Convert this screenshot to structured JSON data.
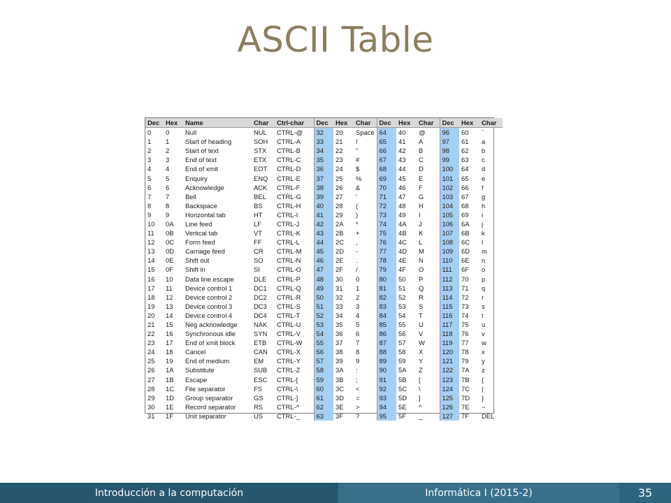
{
  "slide": {
    "title": "ASCII Table",
    "footer_left": "Introducción a la computación",
    "footer_mid": "Informática I (2015-2)",
    "page_number": "35"
  },
  "table": {
    "headers": [
      "Dec",
      "Hex",
      "Name",
      "Char",
      "Ctrl-char",
      "Dec",
      "Hex",
      "Char",
      "Dec",
      "Hex",
      "Char",
      "Dec",
      "Hex",
      "Char"
    ],
    "rows": [
      [
        "0",
        "0",
        "Null",
        "NUL",
        "CTRL-@",
        "32",
        "20",
        "Space",
        "64",
        "40",
        "@",
        "96",
        "60",
        "`"
      ],
      [
        "1",
        "1",
        "Start of heading",
        "SOH",
        "CTRL-A",
        "33",
        "21",
        "!",
        "65",
        "41",
        "A",
        "97",
        "61",
        "a"
      ],
      [
        "2",
        "2",
        "Start of text",
        "STX",
        "CTRL-B",
        "34",
        "22",
        "\"",
        "66",
        "42",
        "B",
        "98",
        "62",
        "b"
      ],
      [
        "3",
        "3",
        "End of text",
        "ETX",
        "CTRL-C",
        "35",
        "23",
        "#",
        "67",
        "43",
        "C",
        "99",
        "63",
        "c"
      ],
      [
        "4",
        "4",
        "End of xmit",
        "EOT",
        "CTRL-D",
        "36",
        "24",
        "$",
        "68",
        "44",
        "D",
        "100",
        "64",
        "d"
      ],
      [
        "5",
        "5",
        "Enquiry",
        "ENQ",
        "CTRL-E",
        "37",
        "25",
        "%",
        "69",
        "45",
        "E",
        "101",
        "65",
        "e"
      ],
      [
        "6",
        "6",
        "Acknowledge",
        "ACK",
        "CTRL-F",
        "38",
        "26",
        "&",
        "70",
        "46",
        "F",
        "102",
        "66",
        "f"
      ],
      [
        "7",
        "7",
        "Bell",
        "BEL",
        "CTRL-G",
        "39",
        "27",
        "'",
        "71",
        "47",
        "G",
        "103",
        "67",
        "g"
      ],
      [
        "8",
        "8",
        "Backspace",
        "BS",
        "CTRL-H",
        "40",
        "28",
        "(",
        "72",
        "48",
        "H",
        "104",
        "68",
        "h"
      ],
      [
        "9",
        "9",
        "Horizontal tab",
        "HT",
        "CTRL-I",
        "41",
        "29",
        ")",
        "73",
        "49",
        "I",
        "105",
        "69",
        "i"
      ],
      [
        "10",
        "0A",
        "Line feed",
        "LF",
        "CTRL-J",
        "42",
        "2A",
        "*",
        "74",
        "4A",
        "J",
        "106",
        "6A",
        "j"
      ],
      [
        "11",
        "0B",
        "Vertical tab",
        "VT",
        "CTRL-K",
        "43",
        "2B",
        "+",
        "75",
        "4B",
        "K",
        "107",
        "6B",
        "k"
      ],
      [
        "12",
        "0C",
        "Form feed",
        "FF",
        "CTRL-L",
        "44",
        "2C",
        ",",
        "76",
        "4C",
        "L",
        "108",
        "6C",
        "l"
      ],
      [
        "13",
        "0D",
        "Carriage feed",
        "CR",
        "CTRL-M",
        "45",
        "2D",
        "-",
        "77",
        "4D",
        "M",
        "109",
        "6D",
        "m"
      ],
      [
        "14",
        "0E",
        "Shift out",
        "SO",
        "CTRL-N",
        "46",
        "2E",
        ".",
        "78",
        "4E",
        "N",
        "110",
        "6E",
        "n"
      ],
      [
        "15",
        "0F",
        "Shift in",
        "SI",
        "CTRL-O",
        "47",
        "2F",
        "/",
        "79",
        "4F",
        "O",
        "111",
        "6F",
        "o"
      ],
      [
        "16",
        "10",
        "Data line escape",
        "DLE",
        "CTRL-P",
        "48",
        "30",
        "0",
        "80",
        "50",
        "P",
        "112",
        "70",
        "p"
      ],
      [
        "17",
        "11",
        "Device control 1",
        "DC1",
        "CTRL-Q",
        "49",
        "31",
        "1",
        "81",
        "51",
        "Q",
        "113",
        "71",
        "q"
      ],
      [
        "18",
        "12",
        "Device control 2",
        "DC2",
        "CTRL-R",
        "50",
        "32",
        "2",
        "82",
        "52",
        "R",
        "114",
        "72",
        "r"
      ],
      [
        "19",
        "13",
        "Device control 3",
        "DC3",
        "CTRL-S",
        "51",
        "33",
        "3",
        "83",
        "53",
        "S",
        "115",
        "73",
        "s"
      ],
      [
        "20",
        "14",
        "Device control 4",
        "DC4",
        "CTRL-T",
        "52",
        "34",
        "4",
        "84",
        "54",
        "T",
        "116",
        "74",
        "t"
      ],
      [
        "21",
        "15",
        "Neg acknowledge",
        "NAK",
        "CTRL-U",
        "53",
        "35",
        "5",
        "85",
        "55",
        "U",
        "117",
        "75",
        "u"
      ],
      [
        "22",
        "16",
        "Synchronous idle",
        "SYN",
        "CTRL-V",
        "54",
        "36",
        "6",
        "86",
        "56",
        "V",
        "118",
        "76",
        "v"
      ],
      [
        "23",
        "17",
        "End of xmit block",
        "ETB",
        "CTRL-W",
        "55",
        "37",
        "7",
        "87",
        "57",
        "W",
        "119",
        "77",
        "w"
      ],
      [
        "24",
        "18",
        "Cancel",
        "CAN",
        "CTRL-X",
        "56",
        "38",
        "8",
        "88",
        "58",
        "X",
        "120",
        "78",
        "x"
      ],
      [
        "25",
        "19",
        "End of medium",
        "EM",
        "CTRL-Y",
        "57",
        "39",
        "9",
        "89",
        "59",
        "Y",
        "121",
        "79",
        "y"
      ],
      [
        "26",
        "1A",
        "Substitute",
        "SUB",
        "CTRL-Z",
        "58",
        "3A",
        ":",
        "90",
        "5A",
        "Z",
        "122",
        "7A",
        "z"
      ],
      [
        "27",
        "1B",
        "Escape",
        "ESC",
        "CTRL-[",
        "59",
        "3B",
        ";",
        "91",
        "5B",
        "[",
        "123",
        "7B",
        "{"
      ],
      [
        "28",
        "1C",
        "File separator",
        "FS",
        "CTRL-\\",
        "60",
        "3C",
        "<",
        "92",
        "5C",
        "\\",
        "124",
        "7C",
        "|"
      ],
      [
        "29",
        "1D",
        "Group separator",
        "GS",
        "CTRL-]",
        "61",
        "3D",
        "=",
        "93",
        "5D",
        "]",
        "125",
        "7D",
        "}"
      ],
      [
        "30",
        "1E",
        "Record separator",
        "RS",
        "CTRL-^",
        "62",
        "3E",
        ">",
        "94",
        "5E",
        "^",
        "126",
        "7E",
        "~"
      ],
      [
        "31",
        "1F",
        "Unit separator",
        "US",
        "CTRL-_",
        "63",
        "3F",
        "?",
        "95",
        "5F",
        "_",
        "127",
        "7F",
        "DEL"
      ]
    ]
  },
  "colors": {
    "title": "#8b7d5e",
    "dec_highlight": "#a7cef3",
    "header_bg": "#d9d9d9",
    "footer_left": "#27576e",
    "footer_mid": "#38708c",
    "footer_right": "#2d6580"
  }
}
